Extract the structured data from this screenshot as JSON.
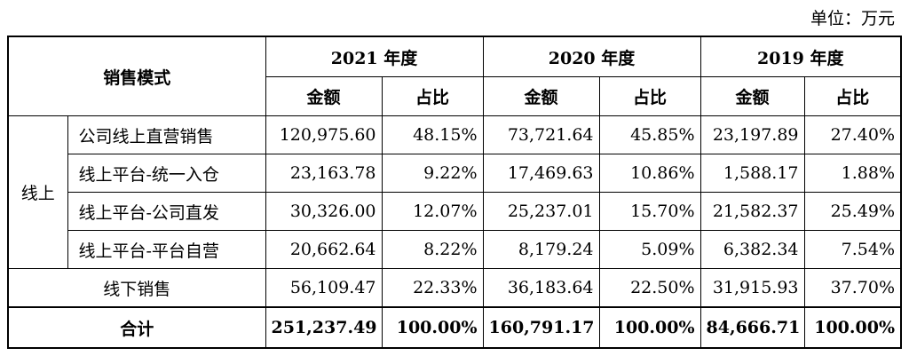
{
  "unit_label": "单位：万元",
  "header": {
    "mode": "销售模式",
    "years": [
      "2021 年度",
      "2020 年度",
      "2019 年度"
    ],
    "amount": "金额",
    "ratio": "占比"
  },
  "online_group": "线上",
  "rows": [
    {
      "label": "公司线上直营销售",
      "v": [
        "120,975.60",
        "48.15%",
        "73,721.64",
        "45.85%",
        "23,197.89",
        "27.40%"
      ]
    },
    {
      "label": "线上平台-统一入仓",
      "v": [
        "23,163.78",
        "9.22%",
        "17,469.63",
        "10.86%",
        "1,588.17",
        "1.88%"
      ]
    },
    {
      "label": "线上平台-公司直发",
      "v": [
        "30,326.00",
        "12.07%",
        "25,237.01",
        "15.70%",
        "21,582.37",
        "25.49%"
      ]
    },
    {
      "label": "线上平台-平台自营",
      "v": [
        "20,662.64",
        "8.22%",
        "8,179.24",
        "5.09%",
        "6,382.34",
        "7.54%"
      ]
    }
  ],
  "offline": {
    "label": "线下销售",
    "v": [
      "56,109.47",
      "22.33%",
      "36,183.64",
      "22.50%",
      "31,915.93",
      "37.70%"
    ]
  },
  "total": {
    "label": "合计",
    "v": [
      "251,237.49",
      "100.00%",
      "160,791.17",
      "100.00%",
      "84,666.71",
      "100.00%"
    ]
  }
}
